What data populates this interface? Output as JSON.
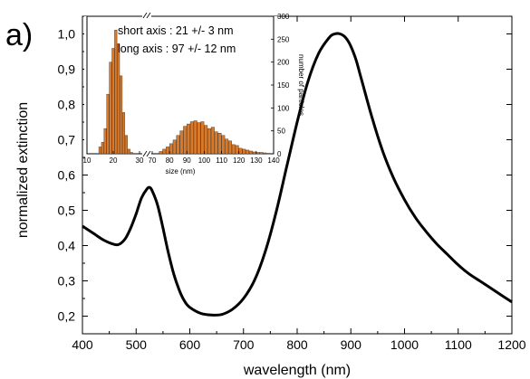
{
  "panel_label": "a)",
  "chart_data": [
    {
      "type": "line",
      "xlabel": "wavelength (nm)",
      "ylabel": "normalized extinction",
      "xlim": [
        400,
        1200
      ],
      "ylim": [
        0.15,
        1.05
      ],
      "xticks": [
        400,
        500,
        600,
        700,
        800,
        900,
        1000,
        1100,
        1200
      ],
      "xtick_labels": [
        "400",
        "500",
        "600",
        "700",
        "800",
        "900",
        "1000",
        "1100",
        "1200"
      ],
      "yticks": [
        0.2,
        0.3,
        0.4,
        0.5,
        0.6,
        0.7,
        0.8,
        0.9,
        1.0
      ],
      "ytick_labels": [
        "0,2",
        "0,3",
        "0,4",
        "0,5",
        "0,6",
        "0,7",
        "0,8",
        "0,9",
        "1,0"
      ],
      "series": [
        {
          "color": "#000000",
          "x": [
            400,
            420,
            440,
            460,
            470,
            480,
            490,
            500,
            510,
            520,
            525,
            530,
            540,
            550,
            560,
            570,
            580,
            590,
            600,
            620,
            640,
            660,
            680,
            700,
            720,
            740,
            760,
            780,
            800,
            820,
            840,
            860,
            870,
            880,
            890,
            900,
            910,
            920,
            940,
            960,
            980,
            1000,
            1020,
            1040,
            1060,
            1080,
            1100,
            1120,
            1140,
            1160,
            1180,
            1200
          ],
          "y": [
            0.455,
            0.435,
            0.415,
            0.403,
            0.405,
            0.42,
            0.45,
            0.49,
            0.535,
            0.56,
            0.565,
            0.555,
            0.515,
            0.45,
            0.38,
            0.32,
            0.275,
            0.243,
            0.225,
            0.208,
            0.203,
            0.205,
            0.22,
            0.25,
            0.3,
            0.38,
            0.49,
            0.62,
            0.75,
            0.865,
            0.945,
            0.99,
            1.0,
            1.0,
            0.99,
            0.965,
            0.925,
            0.87,
            0.76,
            0.665,
            0.59,
            0.53,
            0.48,
            0.44,
            0.405,
            0.375,
            0.345,
            0.32,
            0.3,
            0.28,
            0.26,
            0.24
          ]
        }
      ]
    },
    {
      "type": "bar",
      "xlabel": "size (nm)",
      "ylabel": "number of particles",
      "x_axis_break": [
        30,
        70
      ],
      "xticks": [
        10,
        20,
        30,
        70,
        80,
        90,
        100,
        110,
        120,
        130,
        140
      ],
      "xtick_labels": [
        "10",
        "20",
        "30",
        "70",
        "80",
        "90",
        "100",
        "110",
        "120",
        "130",
        "140"
      ],
      "ylim": [
        0,
        300
      ],
      "yticks": [
        0,
        50,
        100,
        150,
        200,
        250,
        300
      ],
      "ytick_labels": [
        "0",
        "50",
        "100",
        "150",
        "200",
        "250",
        "300"
      ],
      "bar_color": "#d97a2b",
      "bar_edge_color": "#3a2a1a",
      "annotations": [
        "short axis : 21 +/- 3 nm",
        "long axis : 97 +/- 12 nm"
      ],
      "bars": [
        {
          "x": 15,
          "y": 15
        },
        {
          "x": 16,
          "y": 25
        },
        {
          "x": 17,
          "y": 55
        },
        {
          "x": 18,
          "y": 130
        },
        {
          "x": 19,
          "y": 200
        },
        {
          "x": 20,
          "y": 230
        },
        {
          "x": 21,
          "y": 270
        },
        {
          "x": 22,
          "y": 240
        },
        {
          "x": 23,
          "y": 170
        },
        {
          "x": 24,
          "y": 90
        },
        {
          "x": 25,
          "y": 40
        },
        {
          "x": 26,
          "y": 10
        },
        {
          "x": 27,
          "y": 3
        },
        {
          "x": 75,
          "y": 5
        },
        {
          "x": 77,
          "y": 10
        },
        {
          "x": 79,
          "y": 15
        },
        {
          "x": 81,
          "y": 22
        },
        {
          "x": 83,
          "y": 30
        },
        {
          "x": 85,
          "y": 40
        },
        {
          "x": 87,
          "y": 50
        },
        {
          "x": 89,
          "y": 60
        },
        {
          "x": 91,
          "y": 65
        },
        {
          "x": 93,
          "y": 70
        },
        {
          "x": 95,
          "y": 72
        },
        {
          "x": 97,
          "y": 68
        },
        {
          "x": 99,
          "y": 70
        },
        {
          "x": 101,
          "y": 62
        },
        {
          "x": 103,
          "y": 55
        },
        {
          "x": 105,
          "y": 58
        },
        {
          "x": 107,
          "y": 48
        },
        {
          "x": 109,
          "y": 45
        },
        {
          "x": 111,
          "y": 40
        },
        {
          "x": 113,
          "y": 32
        },
        {
          "x": 115,
          "y": 28
        },
        {
          "x": 117,
          "y": 20
        },
        {
          "x": 119,
          "y": 18
        },
        {
          "x": 121,
          "y": 12
        },
        {
          "x": 123,
          "y": 10
        },
        {
          "x": 125,
          "y": 8
        },
        {
          "x": 127,
          "y": 6
        },
        {
          "x": 129,
          "y": 4
        },
        {
          "x": 131,
          "y": 3
        },
        {
          "x": 133,
          "y": 3
        },
        {
          "x": 135,
          "y": 2
        },
        {
          "x": 137,
          "y": 1
        }
      ]
    }
  ]
}
